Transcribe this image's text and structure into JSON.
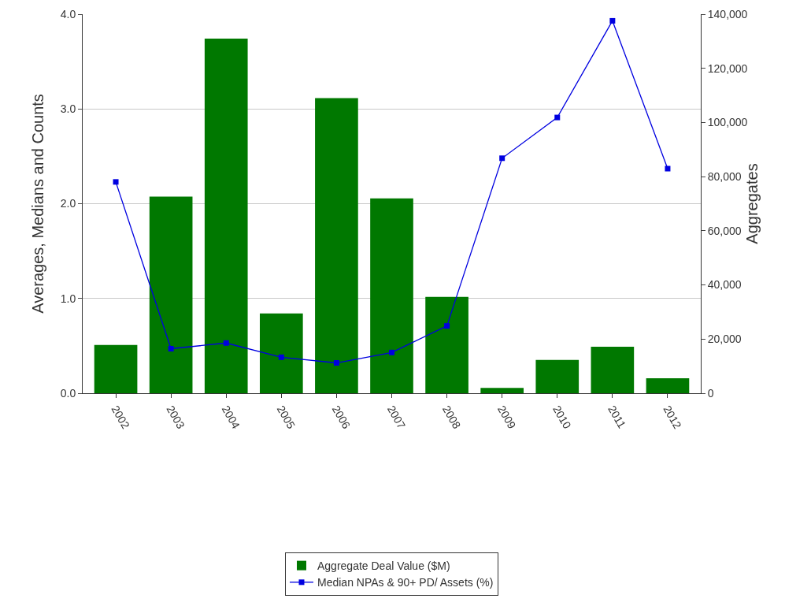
{
  "chart_data": {
    "type": "bar",
    "ylabel": "Averages, Medians and Counts",
    "y2label": "Aggregates",
    "categories": [
      "2002",
      "2003",
      "2004",
      "2005",
      "2006",
      "2007",
      "2008",
      "2009",
      "2010",
      "2011",
      "2012"
    ],
    "series": [
      {
        "name": "Aggregate Deal Value ($M)",
        "axis": "y2",
        "color": "#007800",
        "marker": "square",
        "values": [
          17800,
          72600,
          131000,
          29500,
          109000,
          72000,
          35600,
          2000,
          12300,
          17200,
          5500
        ]
      },
      {
        "name": "Median NPAs & 90+ PD/ Assets (%)",
        "type": "line",
        "axis": "y",
        "color": "#0000e0",
        "marker": "square",
        "values": [
          2.23,
          0.47,
          0.53,
          0.38,
          0.32,
          0.43,
          0.71,
          2.48,
          2.91,
          3.93,
          2.37
        ]
      }
    ],
    "ylim": [
      0,
      4
    ],
    "yticks": [
      {
        "value": 0,
        "label": "0.0"
      },
      {
        "value": 1,
        "label": "1.0"
      },
      {
        "value": 2,
        "label": "2.0"
      },
      {
        "value": 3,
        "label": "3.0"
      },
      {
        "value": 4,
        "label": "4.0"
      }
    ],
    "y2lim": [
      0,
      140000
    ],
    "y2ticks": [
      {
        "value": 0,
        "label": "0"
      },
      {
        "value": 20000,
        "label": "20,000"
      },
      {
        "value": 40000,
        "label": "40,000"
      },
      {
        "value": 60000,
        "label": "60,000"
      },
      {
        "value": 80000,
        "label": "80,000"
      },
      {
        "value": 100000,
        "label": "100,000"
      },
      {
        "value": 120000,
        "label": "120,000"
      },
      {
        "value": 140000,
        "label": "140,000"
      }
    ],
    "grid": "y",
    "legend": "bottom"
  }
}
